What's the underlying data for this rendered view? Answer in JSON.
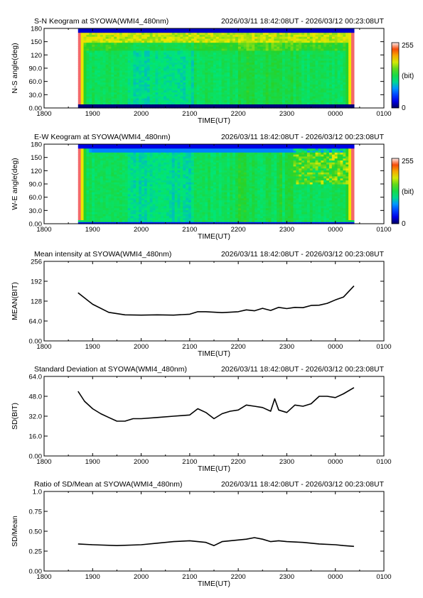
{
  "chart_data": [
    {
      "type": "heatmap",
      "title": "S-N Keogram at SYOWA(WMI4_480nm)",
      "time_range_label": "2026/03/11 18:42:08UT - 2026/03/12 00:23:08UT",
      "xlabel": "TIME(UT)",
      "ylabel": "N-S angle(deg)",
      "x_ticks": [
        "1800",
        "1900",
        "2000",
        "2100",
        "2200",
        "2300",
        "0000",
        "0100"
      ],
      "y_ticks": [
        "0.00",
        "30.0",
        "60.0",
        "90.0",
        "120",
        "150",
        "180"
      ],
      "ylim": [
        0,
        180
      ],
      "data_x_range": [
        "18:42",
        "00:23"
      ],
      "colorbar": {
        "min_label": "0",
        "max_label": "255",
        "unit_label": "(bit)"
      },
      "legend_position": "right"
    },
    {
      "type": "heatmap",
      "title": "E-W Keogram at SYOWA(WMI4_480nm)",
      "time_range_label": "2026/03/11 18:42:08UT - 2026/03/12 00:23:08UT",
      "xlabel": "TIME(UT)",
      "ylabel": "W-E angle(deg)",
      "x_ticks": [
        "1800",
        "1900",
        "2000",
        "2100",
        "2200",
        "2300",
        "0000",
        "0100"
      ],
      "y_ticks": [
        "0.00",
        "30.0",
        "60.0",
        "90.0",
        "120",
        "150",
        "180"
      ],
      "ylim": [
        0,
        180
      ],
      "data_x_range": [
        "18:42",
        "00:23"
      ],
      "colorbar": {
        "min_label": "0",
        "max_label": "255",
        "unit_label": "(bit)"
      },
      "legend_position": "right"
    },
    {
      "type": "line",
      "title": "Mean intensity at SYOWA(WMI4_480nm)",
      "time_range_label": "2026/03/11 18:42:08UT - 2026/03/12 00:23:08UT",
      "xlabel": "TIME(UT)",
      "ylabel": "MEAN(BIT)",
      "x_ticks": [
        "1800",
        "1900",
        "2000",
        "2100",
        "2200",
        "2300",
        "0000",
        "0100"
      ],
      "y_ticks": [
        "0.00",
        "64.0",
        "128",
        "192",
        "256"
      ],
      "ylim": [
        0,
        256
      ],
      "series": [
        {
          "x": [
            "18:42",
            "19:00",
            "19:20",
            "19:40",
            "20:00",
            "20:20",
            "20:40",
            "21:00",
            "21:10",
            "21:20",
            "21:40",
            "22:00",
            "22:10",
            "22:20",
            "22:30",
            "22:40",
            "22:50",
            "23:00",
            "23:10",
            "23:20",
            "23:30",
            "23:40",
            "23:50",
            "00:00",
            "00:10",
            "00:23"
          ],
          "y": [
            155,
            118,
            92,
            84,
            83,
            84,
            83,
            86,
            94,
            94,
            91,
            94,
            100,
            97,
            105,
            98,
            108,
            104,
            108,
            107,
            114,
            115,
            121,
            132,
            141,
            177
          ]
        }
      ]
    },
    {
      "type": "line",
      "title": "Standard Deviation at SYOWA(WMI4_480nm)",
      "time_range_label": "2026/03/11 18:42:08UT - 2026/03/12 00:23:08UT",
      "xlabel": "TIME(UT)",
      "ylabel": "SD(BIT)",
      "x_ticks": [
        "1800",
        "1900",
        "2000",
        "2100",
        "2200",
        "2300",
        "0000",
        "0100"
      ],
      "y_ticks": [
        "0.00",
        "16.0",
        "32.0",
        "48.0",
        "64.0"
      ],
      "ylim": [
        0,
        64
      ],
      "series": [
        {
          "x": [
            "18:42",
            "18:50",
            "19:00",
            "19:10",
            "19:20",
            "19:30",
            "19:40",
            "19:50",
            "20:00",
            "20:20",
            "20:40",
            "21:00",
            "21:10",
            "21:20",
            "21:30",
            "21:40",
            "21:50",
            "22:00",
            "22:10",
            "22:20",
            "22:30",
            "22:40",
            "22:45",
            "22:50",
            "23:00",
            "23:10",
            "23:20",
            "23:30",
            "23:40",
            "23:50",
            "00:00",
            "00:10",
            "00:23"
          ],
          "y": [
            52,
            44,
            38,
            34,
            31,
            28,
            28,
            30,
            30,
            31,
            32,
            33,
            38,
            35,
            30,
            34,
            36,
            37,
            41,
            40,
            39,
            36,
            46,
            37,
            35,
            41,
            40,
            42,
            48,
            48,
            47,
            50,
            55
          ]
        }
      ]
    },
    {
      "type": "line",
      "title": "Ratio of SD/Mean at SYOWA(WMI4_480nm)",
      "time_range_label": "2026/03/11 18:42:08UT - 2026/03/12 00:23:08UT",
      "xlabel": "TIME(UT)",
      "ylabel": "SD/Mean",
      "x_ticks": [
        "1800",
        "1900",
        "2000",
        "2100",
        "2200",
        "2300",
        "0000",
        "0100"
      ],
      "y_ticks": [
        "0.00",
        "0.25",
        "0.50",
        "0.75",
        "1.0"
      ],
      "ylim": [
        0,
        1
      ],
      "series": [
        {
          "x": [
            "18:42",
            "19:00",
            "19:30",
            "20:00",
            "20:20",
            "20:40",
            "21:00",
            "21:20",
            "21:30",
            "21:40",
            "22:00",
            "22:10",
            "22:20",
            "22:30",
            "22:40",
            "22:50",
            "23:00",
            "23:20",
            "23:40",
            "00:00",
            "00:10",
            "00:23"
          ],
          "y": [
            0.34,
            0.33,
            0.32,
            0.33,
            0.35,
            0.37,
            0.38,
            0.36,
            0.32,
            0.37,
            0.39,
            0.4,
            0.42,
            0.4,
            0.37,
            0.38,
            0.37,
            0.36,
            0.34,
            0.33,
            0.32,
            0.31
          ]
        }
      ]
    }
  ]
}
